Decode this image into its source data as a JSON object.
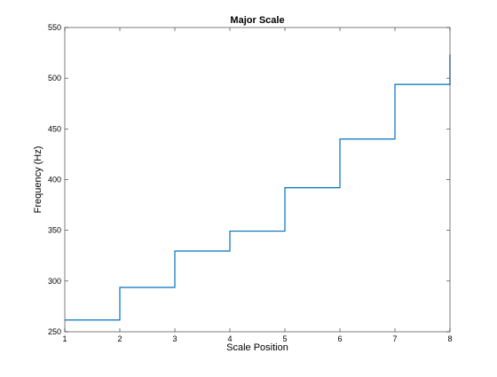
{
  "chart_data": {
    "type": "line",
    "style": "stairs",
    "title": "Major Scale",
    "xlabel": "Scale Position",
    "ylabel": "Frequency (Hz)",
    "xlim": [
      1,
      8
    ],
    "ylim": [
      250,
      550
    ],
    "x_ticks": [
      1,
      2,
      3,
      4,
      5,
      6,
      7,
      8
    ],
    "y_ticks": [
      250,
      300,
      350,
      400,
      450,
      500,
      550
    ],
    "grid": false,
    "legend": "none",
    "series": [
      {
        "color": "#0072bd",
        "x": [
          1,
          2,
          3,
          4,
          5,
          6,
          7,
          8
        ],
        "y": [
          261.6,
          293.7,
          329.6,
          349.2,
          392.0,
          440.0,
          493.9,
          523.3
        ]
      }
    ]
  }
}
